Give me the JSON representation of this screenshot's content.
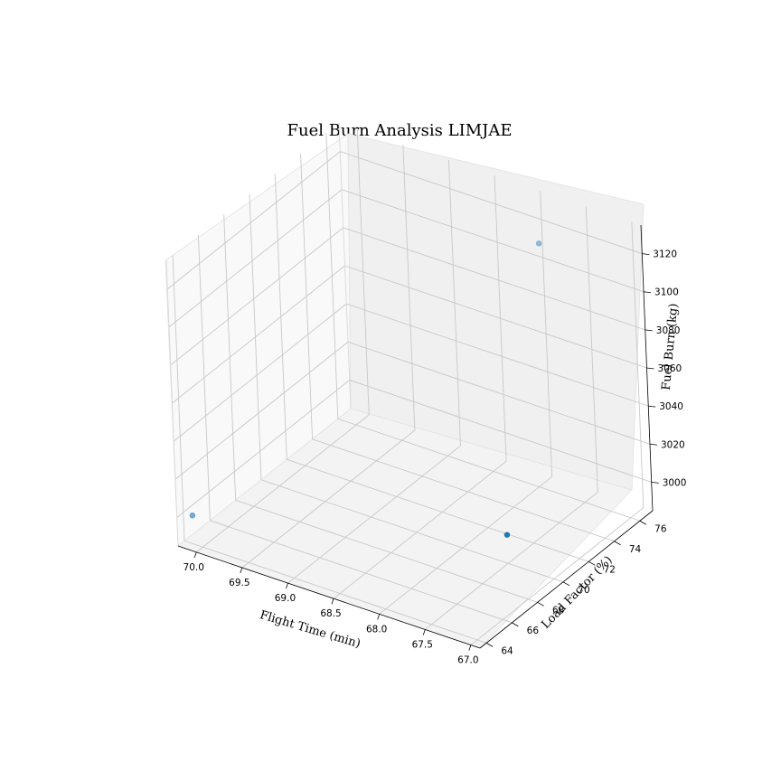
{
  "chart_data": {
    "type": "scatter",
    "projection": "3d",
    "title": "Fuel Burn Analysis LIMJAE",
    "xlabel": "Flight Time (min)",
    "ylabel": "Load Factor (%)",
    "zlabel": "Fuel Burn (kg)",
    "xlim": [
      70.2,
      66.9
    ],
    "ylim": [
      63.5,
      77.0
    ],
    "zlim": [
      2985,
      3135
    ],
    "xticks": [
      "70.0",
      "69.5",
      "69.0",
      "68.5",
      "68.0",
      "67.5",
      "67.0"
    ],
    "yticks": [
      "64",
      "66",
      "68",
      "70",
      "72",
      "74",
      "76"
    ],
    "zticks": [
      "3000",
      "3020",
      "3040",
      "3060",
      "3080",
      "3100",
      "3120"
    ],
    "grid": true,
    "marker_color": "#1f77b4",
    "points": [
      {
        "x": 70.1,
        "y": 64.0,
        "z": 3000,
        "shade": 0.6
      },
      {
        "x": 67.5,
        "y": 70.0,
        "z": 3000,
        "shade": 1.0
      },
      {
        "x": 67.6,
        "y": 74.0,
        "z": 3130,
        "shade": 0.45
      }
    ]
  }
}
